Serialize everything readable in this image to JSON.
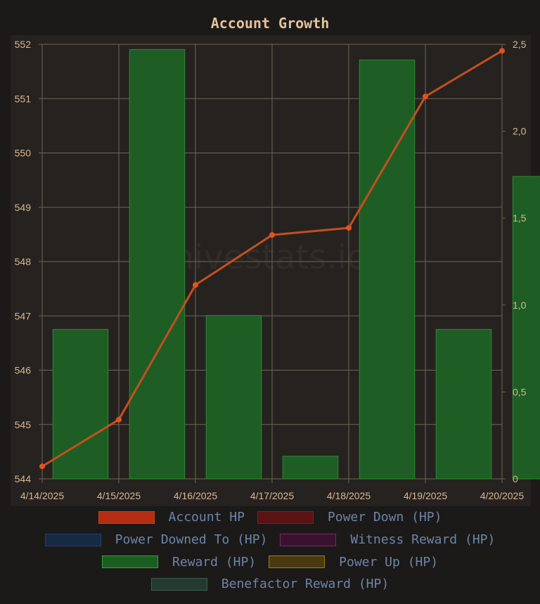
{
  "title": "Account Growth",
  "watermark": "hivestats.io",
  "colors": {
    "background": "#1b1a19",
    "plot_background": "#262220",
    "grid": "#6e6556",
    "axis_text": "#d8b892",
    "title": "#e5c19a",
    "bar_fill": "#1e5e24",
    "bar_stroke": "#2e8a34",
    "line": "#c2501d",
    "point": "#e2531e"
  },
  "legend": [
    {
      "label": "Account HP",
      "color": "#b52d12",
      "border": "#d43a18"
    },
    {
      "label": "Power Down (HP)",
      "color": "#5a1212",
      "border": "#8a1c1c"
    },
    {
      "label": "Power Downed To (HP)",
      "color": "#172a45",
      "border": "#22406a"
    },
    {
      "label": "Witness Reward (HP)",
      "color": "#3a1230",
      "border": "#7a2a62"
    },
    {
      "label": "Reward (HP)",
      "color": "#1c5e22",
      "border": "#2fa33a"
    },
    {
      "label": "Power Up (HP)",
      "color": "#4a3a10",
      "border": "#9a7a1e"
    },
    {
      "label": "Benefactor Reward (HP)",
      "color": "#223a30",
      "border": "#3e5e52"
    }
  ],
  "chart_data": {
    "type": "bar",
    "title": "Account Growth",
    "categories": [
      "4/14/2025",
      "4/15/2025",
      "4/16/2025",
      "4/17/2025",
      "4/18/2025",
      "4/19/2025",
      "4/20/2025"
    ],
    "y_left": {
      "min": 544,
      "max": 552,
      "ticks": [
        "544",
        "545",
        "546",
        "547",
        "548",
        "549",
        "550",
        "551",
        "552"
      ]
    },
    "y_right": {
      "min": 0,
      "max": 2.5,
      "ticks": [
        "0",
        "0,5",
        "1,0",
        "1,5",
        "2,0",
        "2,5"
      ]
    },
    "series": [
      {
        "name": "Reward (HP)",
        "type": "bar",
        "axis": "right",
        "x": [
          0.5,
          1.5,
          2.5,
          3.5,
          4.5,
          5.5,
          6.5
        ],
        "values": [
          0.86,
          2.47,
          0.94,
          0.13,
          2.41,
          0.86,
          1.74
        ]
      },
      {
        "name": "Account HP",
        "type": "line",
        "axis": "left",
        "x": [
          0,
          1,
          2,
          3,
          4,
          5,
          6
        ],
        "values": [
          544.23,
          545.09,
          547.57,
          548.49,
          548.62,
          551.04,
          551.88
        ]
      }
    ],
    "grid": true,
    "legend_position": "bottom"
  }
}
